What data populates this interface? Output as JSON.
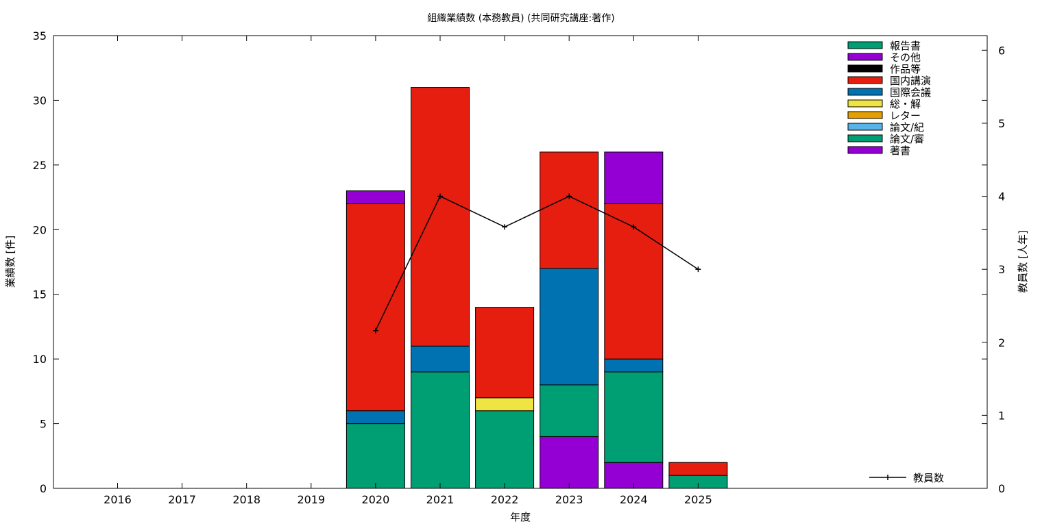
{
  "chart_data": {
    "type": "bar",
    "stacked": true,
    "title": "組織業績数 (本務教員) (共同研究講座:著作)",
    "xlabel": "年度",
    "ylabel": "業績数 [件]",
    "y2label": "教員数 [人年]",
    "categories": [
      "2016",
      "2017",
      "2018",
      "2019",
      "2020",
      "2021",
      "2022",
      "2023",
      "2024",
      "2025"
    ],
    "ylim": [
      0,
      35
    ],
    "yticks": [
      0,
      5,
      10,
      15,
      20,
      25,
      30,
      35
    ],
    "y2lim": [
      0,
      6.2
    ],
    "y2ticks": [
      0,
      1,
      2,
      3,
      4,
      5,
      6
    ],
    "grid": false,
    "legend_position": "top-right",
    "series": [
      {
        "name": "著書",
        "color": "#9400d3",
        "values": [
          0,
          0,
          0,
          0,
          0,
          0,
          0,
          4,
          2,
          0
        ]
      },
      {
        "name": "論文/審",
        "color": "#009e73",
        "values": [
          0,
          0,
          0,
          0,
          5,
          9,
          6,
          4,
          7,
          1
        ]
      },
      {
        "name": "論文/紀",
        "color": "#56b4e9",
        "values": [
          0,
          0,
          0,
          0,
          0,
          0,
          0,
          0,
          0,
          0
        ]
      },
      {
        "name": "レター",
        "color": "#e69f00",
        "values": [
          0,
          0,
          0,
          0,
          0,
          0,
          0,
          0,
          0,
          0
        ]
      },
      {
        "name": "総・解",
        "color": "#f0e442",
        "values": [
          0,
          0,
          0,
          0,
          0,
          0,
          1,
          0,
          0,
          0
        ]
      },
      {
        "name": "国際会議",
        "color": "#0072b2",
        "values": [
          0,
          0,
          0,
          0,
          1,
          2,
          0,
          9,
          1,
          0
        ]
      },
      {
        "name": "国内講演",
        "color": "#e51e10",
        "values": [
          0,
          0,
          0,
          0,
          16,
          20,
          7,
          9,
          12,
          1
        ]
      },
      {
        "name": "作品等",
        "color": "#000000",
        "values": [
          0,
          0,
          0,
          0,
          0,
          0,
          0,
          0,
          0,
          0
        ]
      },
      {
        "name": "その他",
        "color": "#9400d3",
        "values": [
          0,
          0,
          0,
          0,
          1,
          0,
          0,
          0,
          4,
          0
        ]
      },
      {
        "name": "報告書",
        "color": "#009e73",
        "values": [
          0,
          0,
          0,
          0,
          0,
          0,
          0,
          0,
          0,
          0
        ]
      }
    ],
    "legend_order": [
      "報告書",
      "その他",
      "作品等",
      "国内講演",
      "国際会議",
      "総・解",
      "レター",
      "論文/紀",
      "論文/審",
      "著書"
    ],
    "line_series": {
      "name": "教員数",
      "color": "#000000",
      "axis": "y2",
      "x": [
        "2020",
        "2021",
        "2022",
        "2023",
        "2024",
        "2025"
      ],
      "values": [
        2.16,
        4.0,
        3.58,
        4.0,
        3.58,
        3.0
      ]
    }
  }
}
